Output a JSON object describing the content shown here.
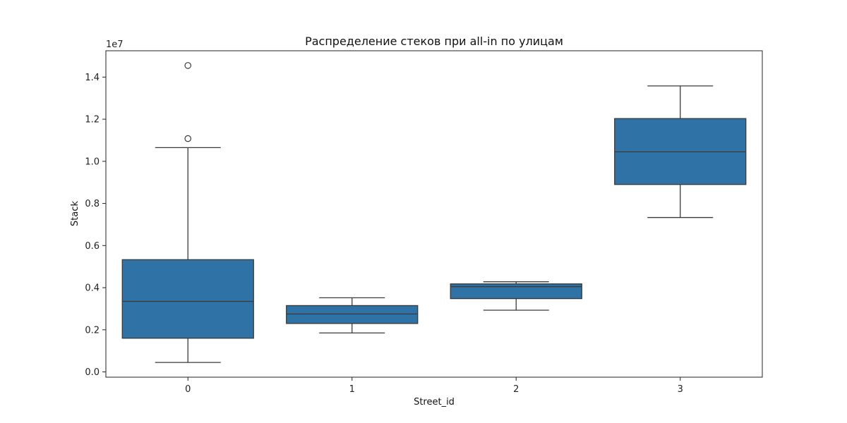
{
  "chart_data": {
    "type": "box",
    "title": "Распределение стеков при all-in по улицам",
    "xlabel": "Street_id",
    "ylabel": "Stack",
    "y_offset_label": "1e7",
    "categories": [
      "0",
      "1",
      "2",
      "3"
    ],
    "y_ticks": [
      0.0,
      0.2,
      0.4,
      0.6,
      0.8,
      1.0,
      1.2,
      1.4
    ],
    "y_tick_labels": [
      "0.0",
      "0.2",
      "0.4",
      "0.6",
      "0.8",
      "1.0",
      "1.2",
      "1.4"
    ],
    "ylim": [
      -0.025,
      1.525
    ],
    "y_unit_multiplier": 10000000,
    "box_color": "#2e72a6",
    "line_color": "#3a3a3a",
    "grid": false,
    "boxes": [
      {
        "category": "0",
        "whisker_low": 0.045,
        "q1": 0.16,
        "median": 0.335,
        "q3": 0.533,
        "whisker_high": 1.065,
        "outliers": [
          1.455,
          1.108
        ]
      },
      {
        "category": "1",
        "whisker_low": 0.185,
        "q1": 0.23,
        "median": 0.275,
        "q3": 0.315,
        "whisker_high": 0.352,
        "outliers": []
      },
      {
        "category": "2",
        "whisker_low": 0.293,
        "q1": 0.348,
        "median": 0.405,
        "q3": 0.418,
        "whisker_high": 0.428,
        "outliers": []
      },
      {
        "category": "3",
        "whisker_low": 0.733,
        "q1": 0.89,
        "median": 1.045,
        "q3": 1.203,
        "whisker_high": 1.358,
        "outliers": []
      }
    ]
  }
}
